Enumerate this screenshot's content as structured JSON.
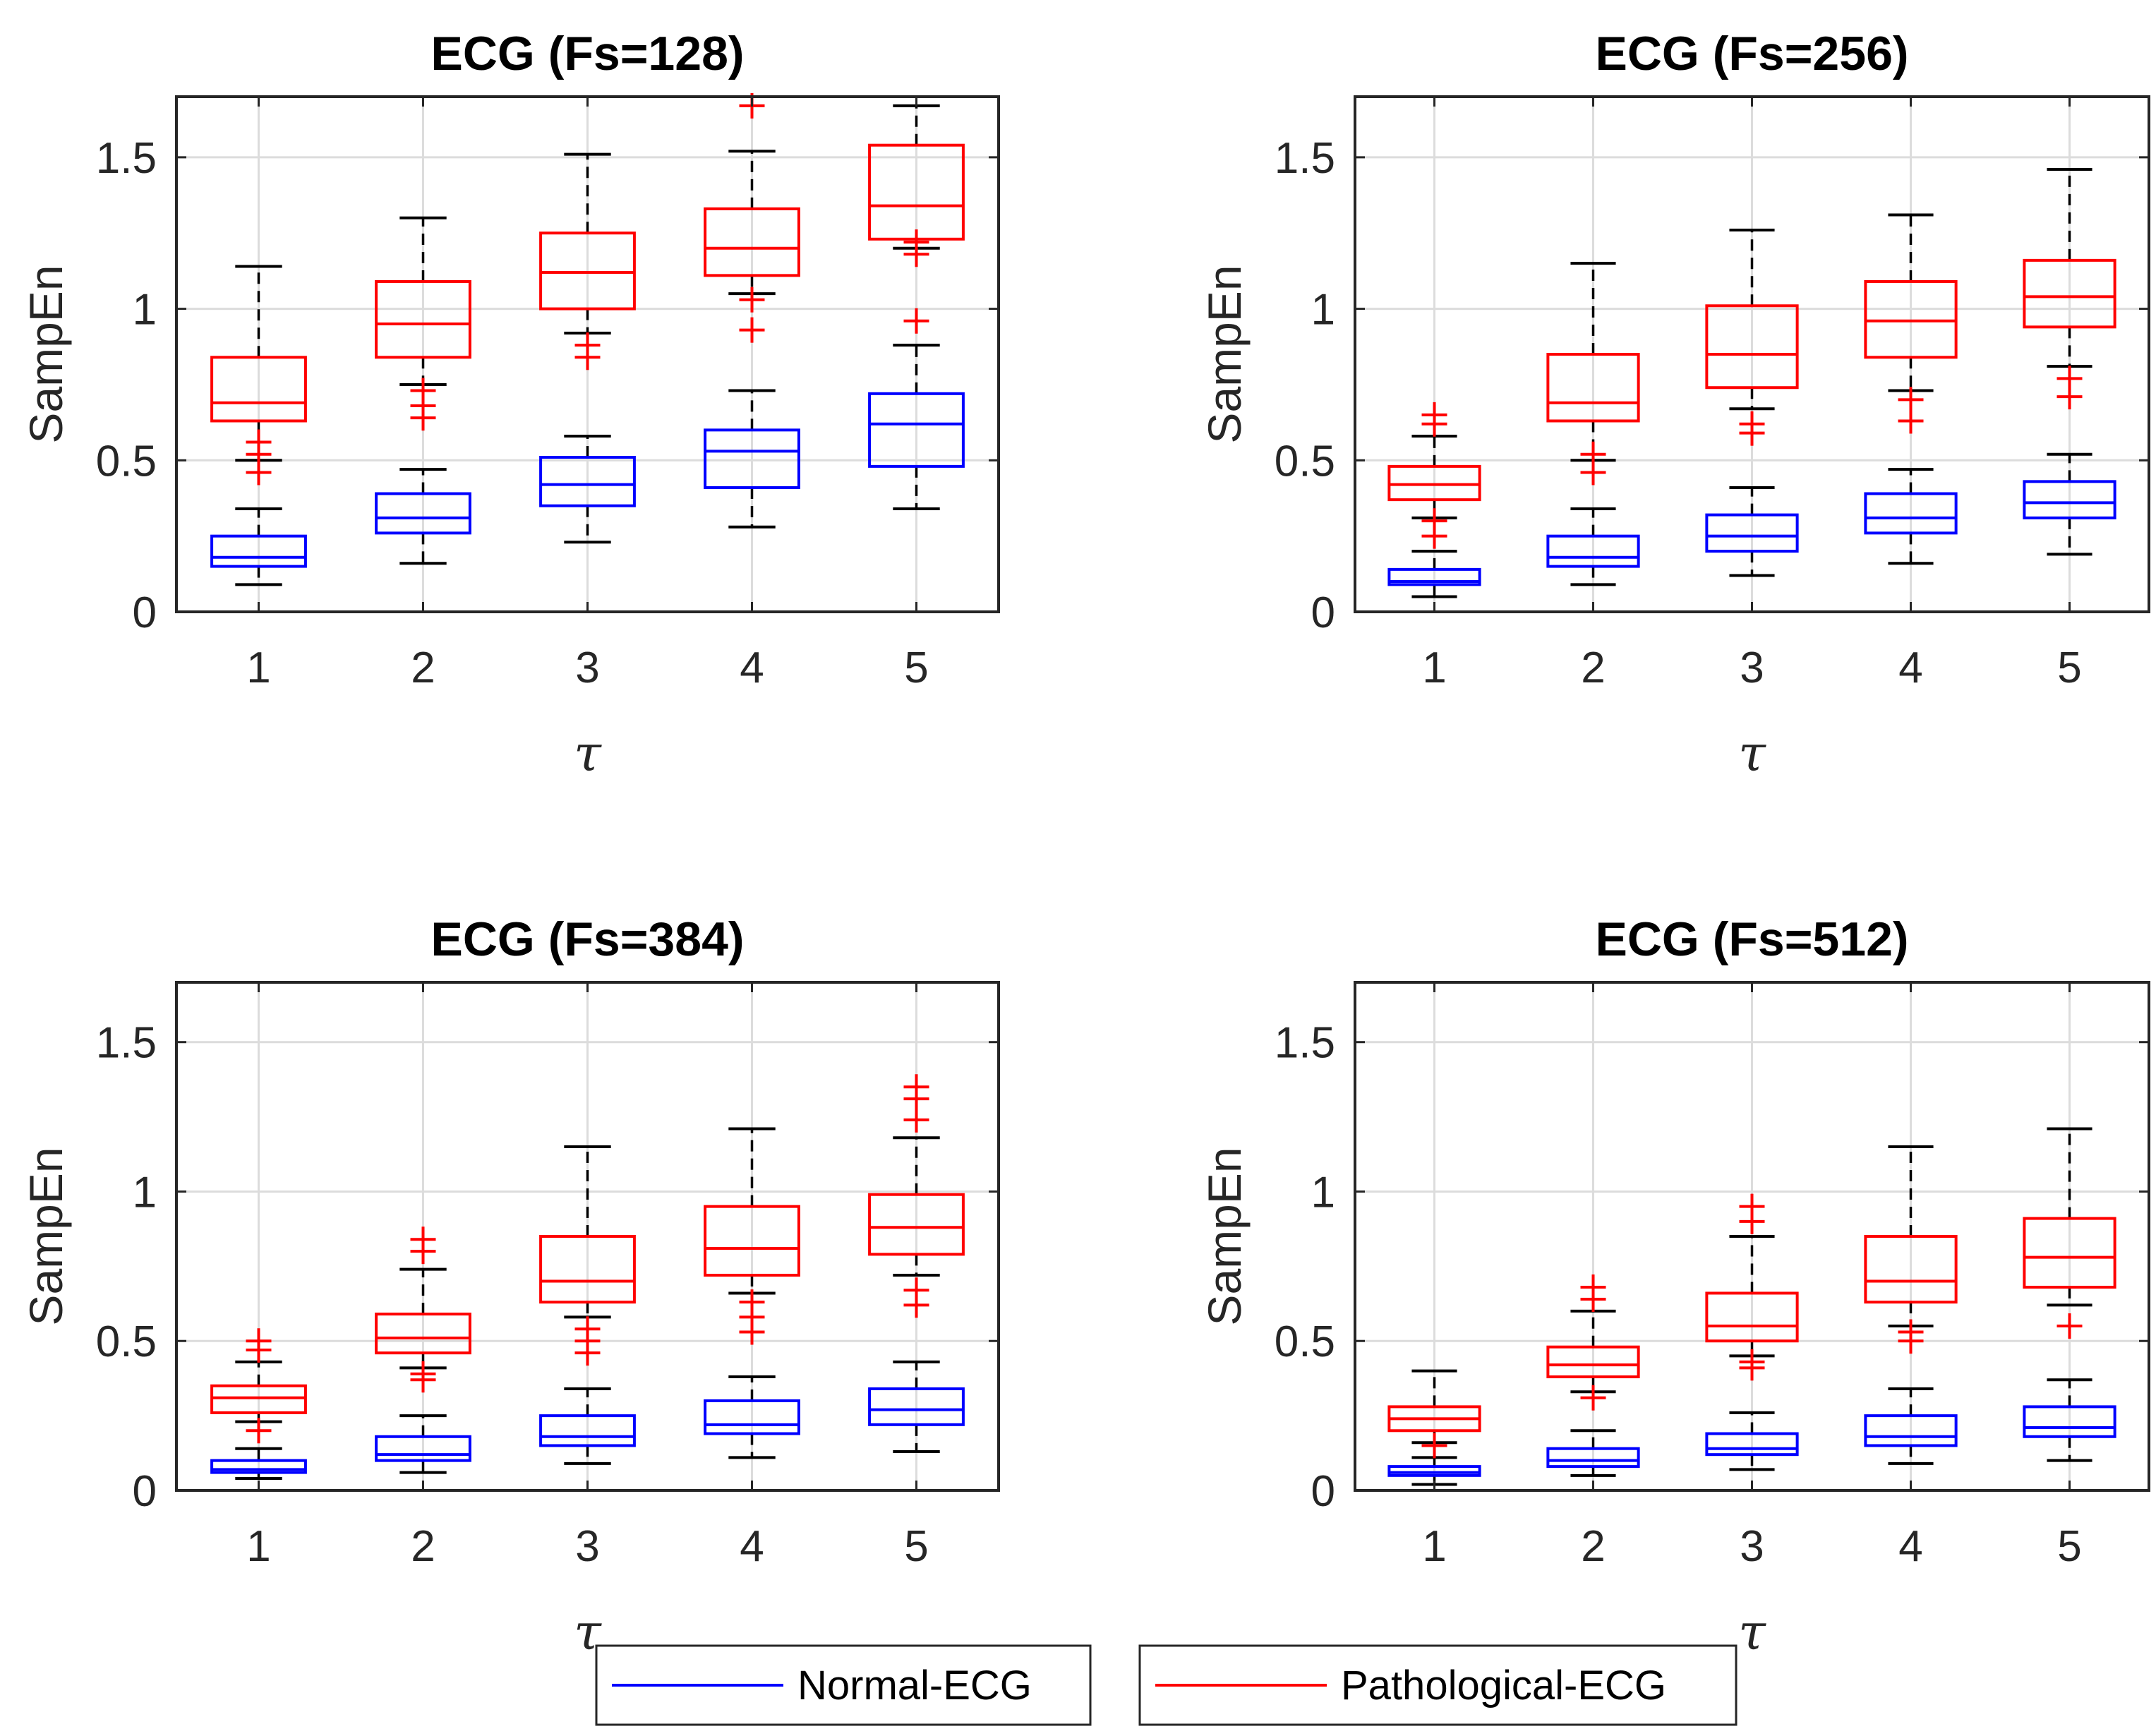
{
  "colors": {
    "normal": "#0000ff",
    "pathological": "#ff0000",
    "whisker": "#000000",
    "grid": "#dcdcdc",
    "axis": "#262626"
  },
  "legend": [
    {
      "name": "Normal-ECG",
      "color": "#0000ff"
    },
    {
      "name": "Pathological-ECG",
      "color": "#ff0000"
    }
  ],
  "chart_data": [
    {
      "type": "boxplot",
      "title": "ECG (Fs=128)",
      "xlabel": "τ",
      "ylabel": "SampEn",
      "ylim": [
        0,
        1.7
      ],
      "yticks": [
        "0",
        "0.5",
        "1",
        "1.5"
      ],
      "categories": [
        "1",
        "2",
        "3",
        "4",
        "5"
      ],
      "series": [
        {
          "name": "Normal-ECG",
          "boxes": [
            {
              "min": 0.09,
              "q1": 0.15,
              "median": 0.18,
              "q3": 0.25,
              "max": 0.34,
              "outliers": []
            },
            {
              "min": 0.16,
              "q1": 0.26,
              "median": 0.31,
              "q3": 0.39,
              "max": 0.47,
              "outliers": []
            },
            {
              "min": 0.23,
              "q1": 0.35,
              "median": 0.42,
              "q3": 0.51,
              "max": 0.58,
              "outliers": []
            },
            {
              "min": 0.28,
              "q1": 0.41,
              "median": 0.53,
              "q3": 0.6,
              "max": 0.73,
              "outliers": []
            },
            {
              "min": 0.34,
              "q1": 0.48,
              "median": 0.62,
              "q3": 0.72,
              "max": 0.88,
              "outliers": []
            }
          ]
        },
        {
          "name": "Pathological-ECG",
          "boxes": [
            {
              "min": 0.5,
              "q1": 0.63,
              "median": 0.69,
              "q3": 0.84,
              "max": 1.14,
              "outliers": [
                0.46,
                0.52,
                0.56
              ]
            },
            {
              "min": 0.75,
              "q1": 0.84,
              "median": 0.95,
              "q3": 1.09,
              "max": 1.3,
              "outliers": [
                0.64,
                0.68,
                0.73
              ]
            },
            {
              "min": 0.92,
              "q1": 1.0,
              "median": 1.12,
              "q3": 1.25,
              "max": 1.51,
              "outliers": [
                0.84,
                0.88
              ]
            },
            {
              "min": 1.05,
              "q1": 1.11,
              "median": 1.2,
              "q3": 1.33,
              "max": 1.52,
              "outliers": [
                0.93,
                1.03,
                1.67
              ]
            },
            {
              "min": 1.2,
              "q1": 1.23,
              "median": 1.34,
              "q3": 1.54,
              "max": 1.67,
              "outliers": [
                0.96,
                1.18,
                1.22
              ]
            }
          ]
        }
      ]
    },
    {
      "type": "boxplot",
      "title": "ECG (Fs=256)",
      "xlabel": "τ",
      "ylabel": "SampEn",
      "ylim": [
        0,
        1.7
      ],
      "yticks": [
        "0",
        "0.5",
        "1",
        "1.5"
      ],
      "categories": [
        "1",
        "2",
        "3",
        "4",
        "5"
      ],
      "series": [
        {
          "name": "Normal-ECG",
          "boxes": [
            {
              "min": 0.05,
              "q1": 0.09,
              "median": 0.1,
              "q3": 0.14,
              "max": 0.2,
              "outliers": []
            },
            {
              "min": 0.09,
              "q1": 0.15,
              "median": 0.18,
              "q3": 0.25,
              "max": 0.34,
              "outliers": []
            },
            {
              "min": 0.12,
              "q1": 0.2,
              "median": 0.25,
              "q3": 0.32,
              "max": 0.41,
              "outliers": []
            },
            {
              "min": 0.16,
              "q1": 0.26,
              "median": 0.31,
              "q3": 0.39,
              "max": 0.47,
              "outliers": []
            },
            {
              "min": 0.19,
              "q1": 0.31,
              "median": 0.36,
              "q3": 0.43,
              "max": 0.52,
              "outliers": []
            }
          ]
        },
        {
          "name": "Pathological-ECG",
          "boxes": [
            {
              "min": 0.31,
              "q1": 0.37,
              "median": 0.42,
              "q3": 0.48,
              "max": 0.58,
              "outliers": [
                0.25,
                0.3,
                0.62,
                0.65
              ]
            },
            {
              "min": 0.5,
              "q1": 0.63,
              "median": 0.69,
              "q3": 0.85,
              "max": 1.15,
              "outliers": [
                0.46,
                0.52
              ]
            },
            {
              "min": 0.67,
              "q1": 0.74,
              "median": 0.85,
              "q3": 1.01,
              "max": 1.26,
              "outliers": [
                0.59,
                0.62
              ]
            },
            {
              "min": 0.73,
              "q1": 0.84,
              "median": 0.96,
              "q3": 1.09,
              "max": 1.31,
              "outliers": [
                0.63,
                0.7
              ]
            },
            {
              "min": 0.81,
              "q1": 0.94,
              "median": 1.04,
              "q3": 1.16,
              "max": 1.46,
              "outliers": [
                0.71,
                0.77
              ]
            }
          ]
        }
      ]
    },
    {
      "type": "boxplot",
      "title": "ECG (Fs=384)",
      "xlabel": "τ",
      "ylabel": "SampEn",
      "ylim": [
        0,
        1.7
      ],
      "yticks": [
        "0",
        "0.5",
        "1",
        "1.5"
      ],
      "categories": [
        "1",
        "2",
        "3",
        "4",
        "5"
      ],
      "series": [
        {
          "name": "Normal-ECG",
          "boxes": [
            {
              "min": 0.04,
              "q1": 0.06,
              "median": 0.07,
              "q3": 0.1,
              "max": 0.14,
              "outliers": []
            },
            {
              "min": 0.06,
              "q1": 0.1,
              "median": 0.12,
              "q3": 0.18,
              "max": 0.25,
              "outliers": []
            },
            {
              "min": 0.09,
              "q1": 0.15,
              "median": 0.18,
              "q3": 0.25,
              "max": 0.34,
              "outliers": []
            },
            {
              "min": 0.11,
              "q1": 0.19,
              "median": 0.22,
              "q3": 0.3,
              "max": 0.38,
              "outliers": []
            },
            {
              "min": 0.13,
              "q1": 0.22,
              "median": 0.27,
              "q3": 0.34,
              "max": 0.43,
              "outliers": []
            }
          ]
        },
        {
          "name": "Pathological-ECG",
          "boxes": [
            {
              "min": 0.23,
              "q1": 0.26,
              "median": 0.31,
              "q3": 0.35,
              "max": 0.43,
              "outliers": [
                0.2,
                0.47,
                0.5
              ]
            },
            {
              "min": 0.41,
              "q1": 0.46,
              "median": 0.51,
              "q3": 0.59,
              "max": 0.74,
              "outliers": [
                0.37,
                0.39,
                0.8,
                0.84
              ]
            },
            {
              "min": 0.58,
              "q1": 0.63,
              "median": 0.7,
              "q3": 0.85,
              "max": 1.15,
              "outliers": [
                0.46,
                0.5,
                0.54
              ]
            },
            {
              "min": 0.66,
              "q1": 0.72,
              "median": 0.81,
              "q3": 0.95,
              "max": 1.21,
              "outliers": [
                0.53,
                0.58,
                0.63
              ]
            },
            {
              "min": 0.72,
              "q1": 0.79,
              "median": 0.88,
              "q3": 0.99,
              "max": 1.18,
              "outliers": [
                0.62,
                0.67,
                1.24,
                1.31,
                1.35
              ]
            }
          ]
        }
      ]
    },
    {
      "type": "boxplot",
      "title": "ECG (Fs=512)",
      "xlabel": "τ",
      "ylabel": "SampEn",
      "ylim": [
        0,
        1.7
      ],
      "yticks": [
        "0",
        "0.5",
        "1",
        "1.5"
      ],
      "categories": [
        "1",
        "2",
        "3",
        "4",
        "5"
      ],
      "series": [
        {
          "name": "Normal-ECG",
          "boxes": [
            {
              "min": 0.02,
              "q1": 0.05,
              "median": 0.06,
              "q3": 0.08,
              "max": 0.11,
              "outliers": []
            },
            {
              "min": 0.05,
              "q1": 0.08,
              "median": 0.1,
              "q3": 0.14,
              "max": 0.2,
              "outliers": []
            },
            {
              "min": 0.07,
              "q1": 0.12,
              "median": 0.14,
              "q3": 0.19,
              "max": 0.26,
              "outliers": []
            },
            {
              "min": 0.09,
              "q1": 0.15,
              "median": 0.18,
              "q3": 0.25,
              "max": 0.34,
              "outliers": []
            },
            {
              "min": 0.1,
              "q1": 0.18,
              "median": 0.21,
              "q3": 0.28,
              "max": 0.37,
              "outliers": []
            }
          ]
        },
        {
          "name": "Pathological-ECG",
          "boxes": [
            {
              "min": 0.16,
              "q1": 0.2,
              "median": 0.24,
              "q3": 0.28,
              "max": 0.4,
              "outliers": [
                0.15
              ]
            },
            {
              "min": 0.33,
              "q1": 0.38,
              "median": 0.42,
              "q3": 0.48,
              "max": 0.6,
              "outliers": [
                0.31,
                0.64,
                0.68
              ]
            },
            {
              "min": 0.45,
              "q1": 0.5,
              "median": 0.55,
              "q3": 0.66,
              "max": 0.85,
              "outliers": [
                0.41,
                0.43,
                0.9,
                0.95
              ]
            },
            {
              "min": 0.55,
              "q1": 0.63,
              "median": 0.7,
              "q3": 0.85,
              "max": 1.15,
              "outliers": [
                0.5,
                0.53
              ]
            },
            {
              "min": 0.62,
              "q1": 0.68,
              "median": 0.78,
              "q3": 0.91,
              "max": 1.21,
              "outliers": [
                0.55
              ]
            }
          ]
        }
      ]
    }
  ]
}
